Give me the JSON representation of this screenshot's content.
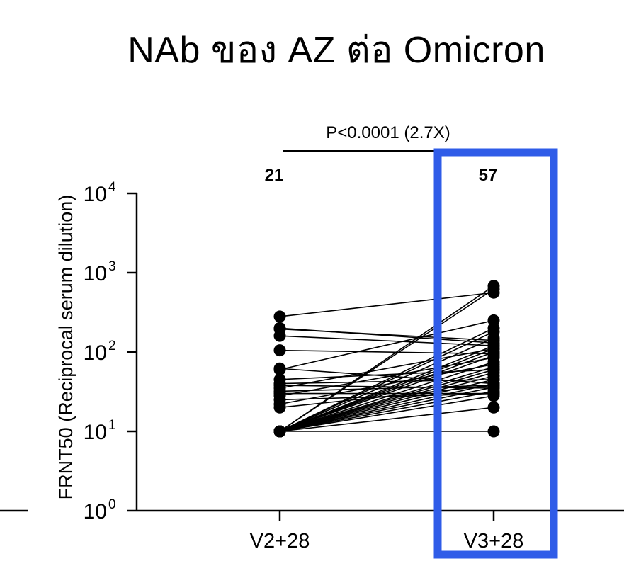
{
  "title": "NAb ของ AZ ต่อ Omicron",
  "chart_data": {
    "type": "scatter",
    "subtype": "paired-dot-plot",
    "title": "NAb ของ AZ ต่อ Omicron",
    "xlabel": "",
    "ylabel": "FRNT50  (Reciprocal serum dilution)",
    "yscale": "log10",
    "ylim": [
      1,
      10000
    ],
    "y_ticks": [
      {
        "value": 1,
        "base": "10",
        "exp": "0"
      },
      {
        "value": 10,
        "base": "10",
        "exp": "1"
      },
      {
        "value": 100,
        "base": "10",
        "exp": "2"
      },
      {
        "value": 1000,
        "base": "10",
        "exp": "3"
      },
      {
        "value": 10000,
        "base": "10",
        "exp": "4"
      }
    ],
    "categories": [
      "V2+28",
      "V3+28"
    ],
    "geometric_means": [
      "21",
      "57"
    ],
    "significance": {
      "text": "P<0.0001 (2.7X)",
      "between": [
        "V2+28",
        "V3+28"
      ]
    },
    "highlight": {
      "category": "V3+28",
      "color": "#2f5ce8"
    },
    "pairs": [
      [
        280,
        560
      ],
      [
        200,
        130
      ],
      [
        195,
        140
      ],
      [
        160,
        120
      ],
      [
        105,
        95
      ],
      [
        62,
        40
      ],
      [
        60,
        250
      ],
      [
        45,
        60
      ],
      [
        40,
        45
      ],
      [
        38,
        35
      ],
      [
        35,
        110
      ],
      [
        32,
        38
      ],
      [
        30,
        30
      ],
      [
        28,
        85
      ],
      [
        25,
        30
      ],
      [
        22,
        70
      ],
      [
        20,
        38
      ],
      [
        10,
        10
      ],
      [
        10,
        20
      ],
      [
        10,
        28
      ],
      [
        10,
        32
      ],
      [
        10,
        36
      ],
      [
        10,
        40
      ],
      [
        10,
        45
      ],
      [
        10,
        50
      ],
      [
        10,
        55
      ],
      [
        10,
        60
      ],
      [
        10,
        65
      ],
      [
        10,
        75
      ],
      [
        10,
        90
      ],
      [
        10,
        100
      ],
      [
        10,
        110
      ],
      [
        10,
        120
      ],
      [
        10,
        150
      ],
      [
        10,
        180
      ],
      [
        10,
        200
      ],
      [
        10,
        620
      ],
      [
        10,
        680
      ]
    ],
    "grid": false,
    "legend": "none",
    "marker_color": "#000000",
    "line_color": "#000000"
  }
}
